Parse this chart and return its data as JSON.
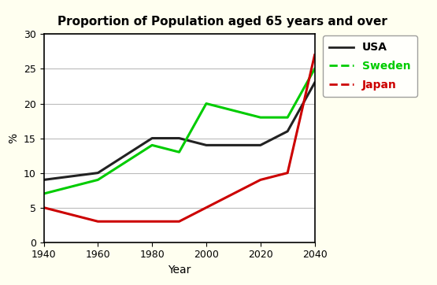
{
  "title": "Proportion of Population aged 65 years and over",
  "xlabel": "Year",
  "ylabel": "%",
  "xlim": [
    1940,
    2040
  ],
  "ylim": [
    0,
    30
  ],
  "xticks": [
    1940,
    1960,
    1980,
    2000,
    2020,
    2040
  ],
  "yticks": [
    0,
    5,
    10,
    15,
    20,
    25,
    30
  ],
  "outer_bg": "#fffff0",
  "plot_bg": "#ffffff",
  "series": [
    {
      "label": "USA",
      "color": "#222222",
      "linewidth": 2.2,
      "linestyle": "solid",
      "legend_linestyle": "solid",
      "x": [
        1940,
        1960,
        1980,
        1990,
        2000,
        2020,
        2030,
        2040
      ],
      "y": [
        9,
        10,
        15,
        15,
        14,
        14,
        16,
        23
      ]
    },
    {
      "label": "Sweden",
      "color": "#00cc00",
      "linewidth": 2.2,
      "linestyle": "solid",
      "legend_linestyle": "dashed",
      "x": [
        1940,
        1960,
        1980,
        1990,
        2000,
        2020,
        2030,
        2040
      ],
      "y": [
        7,
        9,
        14,
        13,
        20,
        18,
        18,
        25
      ]
    },
    {
      "label": "Japan",
      "color": "#cc0000",
      "linewidth": 2.2,
      "linestyle": "solid",
      "legend_linestyle": "dashed",
      "x": [
        1940,
        1960,
        1980,
        1990,
        2000,
        2020,
        2030,
        2040
      ],
      "y": [
        5,
        3,
        3,
        3,
        5,
        9,
        10,
        27
      ]
    }
  ],
  "legend_text_colors": {
    "USA": "#000000",
    "Sweden": "#00cc00",
    "Japan": "#cc0000"
  },
  "title_fontsize": 11,
  "axis_label_fontsize": 10,
  "tick_fontsize": 9,
  "legend_fontsize": 10
}
